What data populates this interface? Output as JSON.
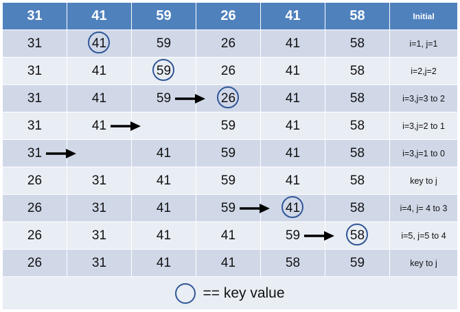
{
  "header": [
    "31",
    "41",
    "59",
    "26",
    "41",
    "58"
  ],
  "header_note": "Initial",
  "rows": [
    {
      "cells": [
        "31",
        "41",
        "59",
        "26",
        "41",
        "58"
      ],
      "note": "i=1, j=1",
      "circle": 1,
      "arrow": null
    },
    {
      "cells": [
        "31",
        "41",
        "59",
        "26",
        "41",
        "58"
      ],
      "note": "i=2,j=2",
      "circle": 2,
      "arrow": null
    },
    {
      "cells": [
        "31",
        "41",
        "59",
        "26",
        "41",
        "58"
      ],
      "note": "i=3,j=3 to 2",
      "circle": 3,
      "arrow": 3
    },
    {
      "cells": [
        "31",
        "41",
        "",
        "59",
        "41",
        "58"
      ],
      "note": "i=3,j=2 to 1",
      "circle": null,
      "arrow": 2
    },
    {
      "cells": [
        "31",
        "",
        "41",
        "59",
        "41",
        "58"
      ],
      "note": "i=3,j=1 to 0",
      "circle": null,
      "arrow": 1
    },
    {
      "cells": [
        "26",
        "31",
        "41",
        "59",
        "41",
        "58"
      ],
      "note": "key to j",
      "circle": null,
      "arrow": null
    },
    {
      "cells": [
        "26",
        "31",
        "41",
        "59",
        "41",
        "58"
      ],
      "note": "i=4, j= 4  to 3",
      "circle": 4,
      "arrow": 4
    },
    {
      "cells": [
        "26",
        "31",
        "41",
        "41",
        "59",
        "58"
      ],
      "note": "i=5, j=5 to 4",
      "circle": 5,
      "arrow": 5
    },
    {
      "cells": [
        "26",
        "31",
        "41",
        "41",
        "58",
        "59"
      ],
      "note": "key to j",
      "circle": null,
      "arrow": null
    }
  ],
  "legend": {
    "text": "== key value"
  }
}
